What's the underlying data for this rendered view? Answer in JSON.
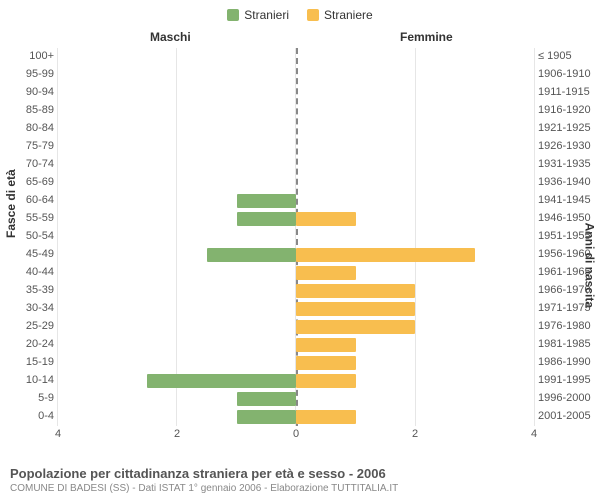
{
  "legend": {
    "male": {
      "label": "Stranieri",
      "color": "#83b36f"
    },
    "female": {
      "label": "Straniere",
      "color": "#f8be4f"
    }
  },
  "headers": {
    "male": "Maschi",
    "female": "Femmine"
  },
  "axis": {
    "left_label": "Fasce di età",
    "right_label": "Anni di nascita",
    "xlim": 4,
    "xtick_step": 2,
    "grid_color": "#e6e6e6",
    "background_color": "#ffffff"
  },
  "rows": [
    {
      "age": "100+",
      "birth": "≤ 1905",
      "m": 0,
      "f": 0
    },
    {
      "age": "95-99",
      "birth": "1906-1910",
      "m": 0,
      "f": 0
    },
    {
      "age": "90-94",
      "birth": "1911-1915",
      "m": 0,
      "f": 0
    },
    {
      "age": "85-89",
      "birth": "1916-1920",
      "m": 0,
      "f": 0
    },
    {
      "age": "80-84",
      "birth": "1921-1925",
      "m": 0,
      "f": 0
    },
    {
      "age": "75-79",
      "birth": "1926-1930",
      "m": 0,
      "f": 0
    },
    {
      "age": "70-74",
      "birth": "1931-1935",
      "m": 0,
      "f": 0
    },
    {
      "age": "65-69",
      "birth": "1936-1940",
      "m": 0,
      "f": 0
    },
    {
      "age": "60-64",
      "birth": "1941-1945",
      "m": 1,
      "f": 0
    },
    {
      "age": "55-59",
      "birth": "1946-1950",
      "m": 1,
      "f": 1
    },
    {
      "age": "50-54",
      "birth": "1951-1955",
      "m": 0,
      "f": 0
    },
    {
      "age": "45-49",
      "birth": "1956-1960",
      "m": 1.5,
      "f": 3
    },
    {
      "age": "40-44",
      "birth": "1961-1965",
      "m": 0,
      "f": 1
    },
    {
      "age": "35-39",
      "birth": "1966-1970",
      "m": 0,
      "f": 2
    },
    {
      "age": "30-34",
      "birth": "1971-1975",
      "m": 0,
      "f": 2
    },
    {
      "age": "25-29",
      "birth": "1976-1980",
      "m": 0,
      "f": 2
    },
    {
      "age": "20-24",
      "birth": "1981-1985",
      "m": 0,
      "f": 1
    },
    {
      "age": "15-19",
      "birth": "1986-1990",
      "m": 0,
      "f": 1
    },
    {
      "age": "10-14",
      "birth": "1991-1995",
      "m": 2.5,
      "f": 1
    },
    {
      "age": "5-9",
      "birth": "1996-2000",
      "m": 1,
      "f": 0
    },
    {
      "age": "0-4",
      "birth": "2001-2005",
      "m": 1,
      "f": 1
    }
  ],
  "footer": {
    "title": "Popolazione per cittadinanza straniera per età e sesso - 2006",
    "subtitle": "COMUNE DI BADESI (SS) - Dati ISTAT 1° gennaio 2006 - Elaborazione TUTTITALIA.IT"
  },
  "xticks_left": [
    "4",
    "2",
    "0"
  ],
  "xticks_right": [
    "2",
    "4"
  ]
}
